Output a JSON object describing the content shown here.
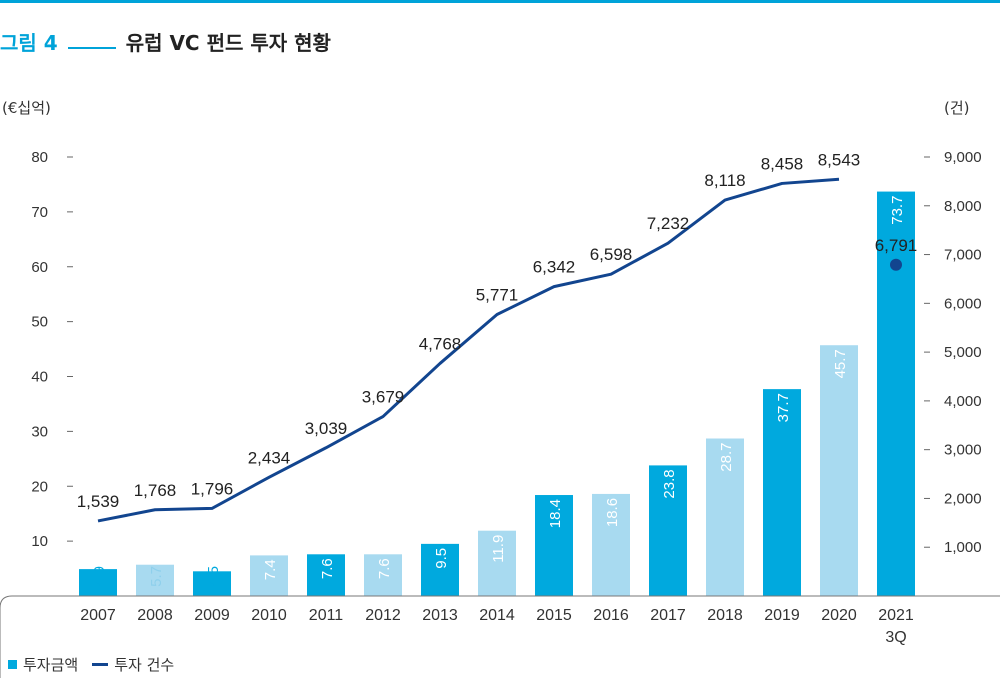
{
  "figure": {
    "number": "그림 4",
    "title": "유럽 VC 펀드 투자 현황"
  },
  "units": {
    "left": "(€십억)",
    "right": "(건)"
  },
  "legend": {
    "bar": "투자금액",
    "line": "투자 건수"
  },
  "colors": {
    "bar_dark": "#00a9de",
    "bar_light": "#a8daf0",
    "line": "#12458f",
    "accent": "#00a3d9"
  },
  "chart_data": {
    "type": "bar",
    "categories": [
      "2007",
      "2008",
      "2009",
      "2010",
      "2011",
      "2012",
      "2013",
      "2014",
      "2015",
      "2016",
      "2017",
      "2018",
      "2019",
      "2020",
      "2021\n3Q"
    ],
    "bar_labels": [
      "4.9",
      "5.7",
      "4.5",
      "7.4",
      "7.6",
      "7.6",
      "9.5",
      "11.9",
      "18.4",
      "18.6",
      "23.8",
      "28.7",
      "37.7",
      "45.7",
      "73.7"
    ],
    "series": [
      {
        "name": "투자금액",
        "type": "bar",
        "axis": "left",
        "values": [
          4.9,
          5.7,
          4.5,
          7.4,
          7.6,
          7.6,
          9.5,
          11.9,
          18.4,
          18.6,
          23.8,
          28.7,
          37.7,
          45.7,
          73.7
        ],
        "shade": [
          "dark",
          "light",
          "dark",
          "light",
          "dark",
          "light",
          "dark",
          "light",
          "dark",
          "light",
          "dark",
          "light",
          "dark",
          "light",
          "dark"
        ]
      },
      {
        "name": "투자 건수",
        "type": "line",
        "axis": "right",
        "values": [
          1539,
          1768,
          1796,
          2434,
          3039,
          3679,
          4768,
          5771,
          6342,
          6598,
          7232,
          8118,
          8458,
          8543,
          null
        ],
        "labels": [
          "1,539",
          "1,768",
          "1,796",
          "2,434",
          "3,039",
          "3,679",
          "4,768",
          "5,771",
          "6,342",
          "6,598",
          "7,232",
          "8,118",
          "8,458",
          "8,543",
          ""
        ]
      },
      {
        "name": "투자 건수",
        "type": "point",
        "axis": "right",
        "values": [
          null,
          null,
          null,
          null,
          null,
          null,
          null,
          null,
          null,
          null,
          null,
          null,
          null,
          null,
          6791
        ],
        "labels": [
          "",
          "",
          "",
          "",
          "",
          "",
          "",
          "",
          "",
          "",
          "",
          "",
          "",
          "",
          "6,791"
        ]
      }
    ],
    "y_left": {
      "range": [
        0,
        80
      ],
      "ticks": [
        "10",
        "20",
        "30",
        "40",
        "50",
        "60",
        "70",
        "80"
      ],
      "tick_values": [
        10,
        20,
        30,
        40,
        50,
        60,
        70,
        80
      ]
    },
    "y_right": {
      "range": [
        0,
        9000
      ],
      "ticks": [
        "1,000",
        "2,000",
        "3,000",
        "4,000",
        "5,000",
        "6,000",
        "7,000",
        "8,000",
        "9,000"
      ],
      "tick_values": [
        1000,
        2000,
        3000,
        4000,
        5000,
        6000,
        7000,
        8000,
        9000
      ]
    },
    "grid": false,
    "legend_position": "bottom-left"
  }
}
